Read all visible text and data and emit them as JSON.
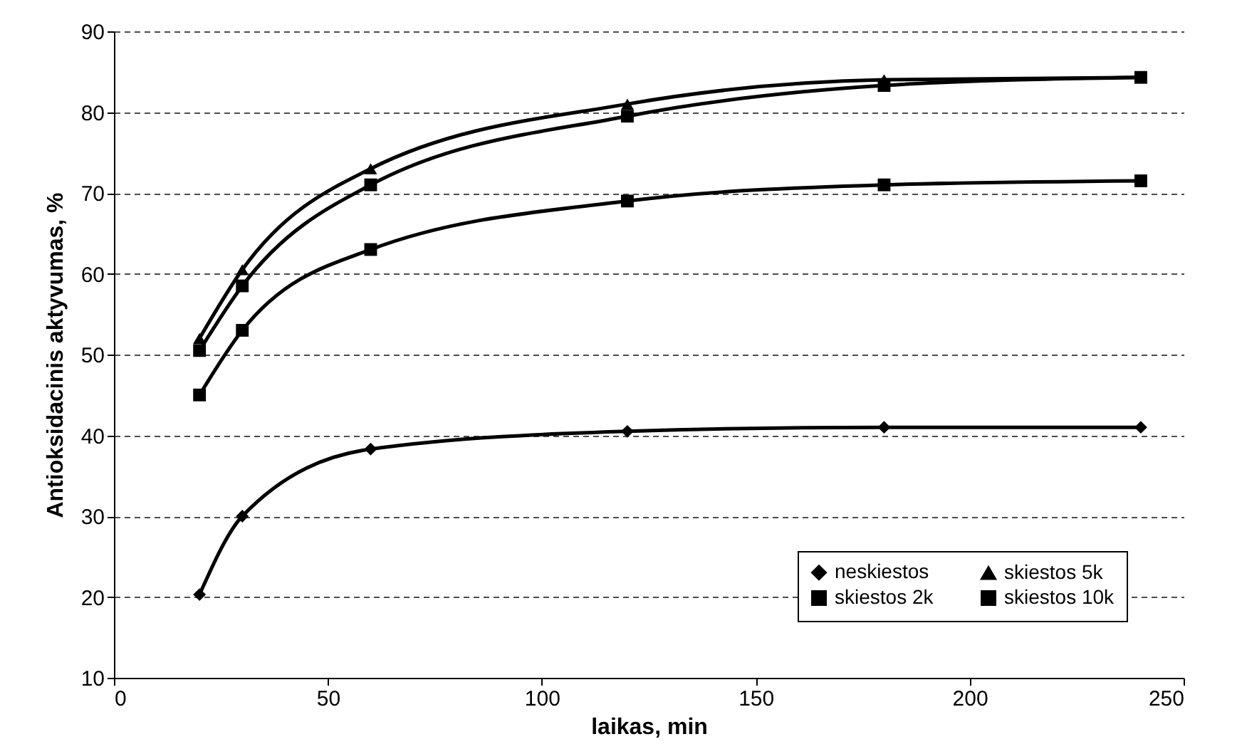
{
  "chart_data": {
    "type": "line",
    "xlabel": "laikas, min",
    "ylabel": "Antioksidacinis aktyvumas, %",
    "x": [
      20,
      30,
      60,
      120,
      180,
      240
    ],
    "series": [
      {
        "name": "neskiestos",
        "color": "#000000",
        "marker": "diamond",
        "values": [
          20.3,
          30,
          38.3,
          40.5,
          41,
          41
        ]
      },
      {
        "name": "skiestos 2k",
        "color": "#000000",
        "marker": "square",
        "values": [
          45,
          53,
          63,
          69,
          71,
          71.5
        ]
      },
      {
        "name": "skiestos 5k",
        "color": "#000000",
        "marker": "triangle",
        "values": [
          52,
          60.5,
          73,
          81,
          84,
          84.3
        ]
      },
      {
        "name": "skiestos 10k",
        "color": "#000000",
        "marker": "square",
        "values": [
          50.5,
          58.5,
          71,
          79.5,
          83.3,
          84.3
        ]
      }
    ],
    "xlim": [
      0,
      250
    ],
    "xticks": [
      0,
      50,
      100,
      150,
      200,
      250
    ],
    "ylim": [
      10,
      90
    ],
    "yticks": [
      10,
      20,
      30,
      40,
      50,
      60,
      70,
      80,
      90
    ],
    "grid": "y",
    "legend": "bottom right",
    "line_style": "solid"
  }
}
